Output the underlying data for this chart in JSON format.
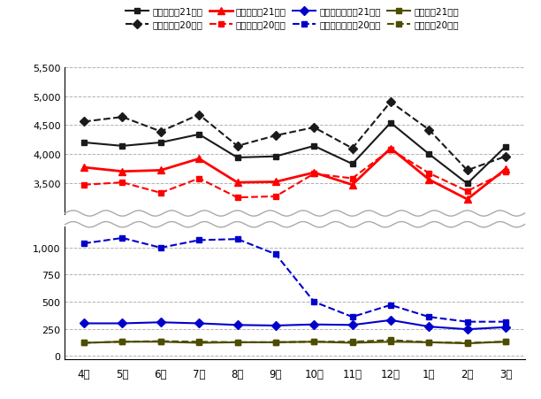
{
  "months": [
    "4月",
    "5月",
    "6月",
    "7月",
    "8月",
    "9月",
    "10月",
    "11月",
    "12月",
    "1月",
    "2月",
    "3月"
  ],
  "gomi_total_21": [
    4200,
    4140,
    4200,
    4340,
    3940,
    3960,
    4140,
    3830,
    4540,
    4000,
    3490,
    4130
  ],
  "gomi_total_20": [
    4560,
    4640,
    4390,
    4680,
    4140,
    4320,
    4460,
    4100,
    4900,
    4420,
    3720,
    3960
  ],
  "moeru_21": [
    3770,
    3700,
    3720,
    3920,
    3510,
    3520,
    3680,
    3470,
    4100,
    3560,
    3220,
    3740
  ],
  "moeru_20": [
    3470,
    3510,
    3330,
    3580,
    3250,
    3270,
    3660,
    3580,
    4080,
    3670,
    3360,
    3690
  ],
  "moenai_21": [
    300,
    300,
    310,
    300,
    285,
    280,
    290,
    285,
    330,
    270,
    245,
    265
  ],
  "moenai_20": [
    1040,
    1090,
    1000,
    1070,
    1080,
    940,
    500,
    360,
    470,
    360,
    315,
    315
  ],
  "sodai_21": [
    120,
    130,
    130,
    120,
    125,
    125,
    130,
    120,
    130,
    125,
    115,
    130
  ],
  "sodai_20": [
    120,
    130,
    135,
    130,
    125,
    125,
    130,
    130,
    145,
    125,
    120,
    130
  ],
  "color_black": "#1a1a1a",
  "color_red": "#ff0000",
  "color_blue": "#0000cc",
  "color_olive": "#4d4d00",
  "background": "#ffffff",
  "grid_color": "#aaaaaa",
  "legend_labels": [
    "ごみ合計量21年度",
    "ごみ合計量20年度",
    "燃やすごみ21年度",
    "燃やすごみ20年度",
    "燃やさないごみ21年度",
    "燃やさないごみ20年度",
    "祖大ごみ21年度",
    "祖大ごみ20年度"
  ]
}
